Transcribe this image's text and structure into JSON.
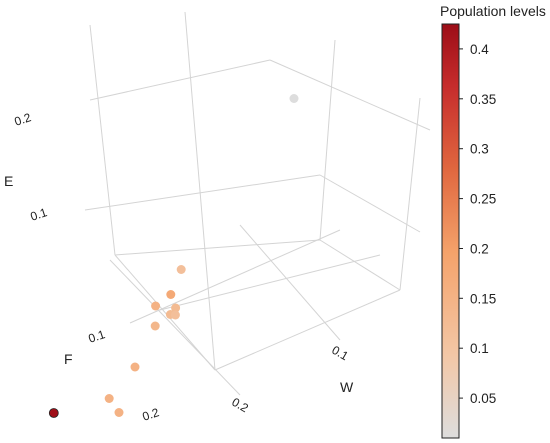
{
  "chart_data": {
    "type": "scatter",
    "dimensions": 3,
    "axes": {
      "x": {
        "label": "W",
        "ticks": [
          "0.1",
          "0.2"
        ]
      },
      "y": {
        "label": "F",
        "ticks": [
          "0.1",
          "0.2"
        ]
      },
      "z": {
        "label": "E",
        "ticks": [
          "0.1",
          "0.2"
        ]
      }
    },
    "grid": true,
    "colorbar": {
      "title": "Population levels",
      "range": [
        0.01,
        0.425
      ],
      "ticks": [
        0.05,
        0.1,
        0.15,
        0.2,
        0.25,
        0.3,
        0.35,
        0.4
      ],
      "tick_labels": [
        "0.05",
        "0.1",
        "0.15",
        "0.2",
        "0.25",
        "0.3",
        "0.35",
        "0.4"
      ],
      "colorscale": [
        "#dddddd",
        "#f3c7a6",
        "#f4a26a",
        "#e0673f",
        "#c62c2c",
        "#9c0d17"
      ],
      "placement": "right"
    },
    "points": [
      {
        "w": 0.05,
        "f": 0.0,
        "e": 0.29,
        "population": 0.01
      },
      {
        "w": 0.1,
        "f": 0.21,
        "e": 0.03,
        "population": 0.42
      },
      {
        "w": 0.14,
        "f": 0.11,
        "e": 0.05,
        "population": 0.14
      },
      {
        "w": 0.21,
        "f": 0.09,
        "e": 0.03,
        "population": 0.14
      },
      {
        "w": 0.17,
        "f": 0.12,
        "e": 0.04,
        "population": 0.14
      },
      {
        "w": 0.16,
        "f": 0.08,
        "e": 0.11,
        "population": 0.13
      },
      {
        "w": 0.12,
        "f": 0.1,
        "e": 0.12,
        "population": 0.14
      },
      {
        "w": 0.13,
        "f": 0.08,
        "e": 0.13,
        "population": 0.16
      },
      {
        "w": 0.11,
        "f": 0.08,
        "e": 0.15,
        "population": 0.11
      },
      {
        "w": 0.16,
        "f": 0.06,
        "e": 0.12,
        "population": 0.12
      },
      {
        "w": 0.17,
        "f": 0.06,
        "e": 0.12,
        "population": 0.12
      },
      {
        "w": 0.18,
        "f": 0.05,
        "e": 0.12,
        "population": 0.11
      }
    ]
  }
}
